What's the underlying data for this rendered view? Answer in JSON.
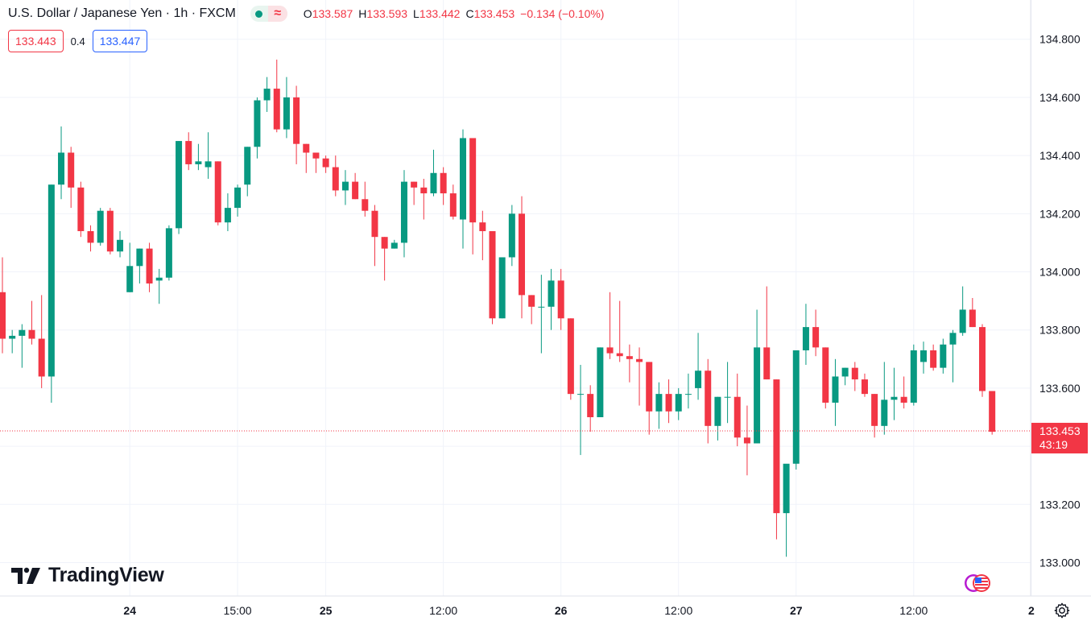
{
  "header": {
    "title": "U.S. Dollar / Japanese Yen · 1h · FXCM",
    "ohlc": [
      {
        "k": "O",
        "v": "133.587"
      },
      {
        "k": "H",
        "v": "133.593"
      },
      {
        "k": "L",
        "v": "133.442"
      },
      {
        "k": "C",
        "v": "133.453"
      },
      {
        "k": "",
        "v": "−0.134 (−0.10%)"
      }
    ]
  },
  "trade": {
    "sell": "133.443",
    "spread": "0.4",
    "buy": "133.447"
  },
  "brand": {
    "name": "TradingView"
  },
  "colors": {
    "up": "#089981",
    "down": "#f23645",
    "grid": "#f0f3fa",
    "axis_text": "#131722"
  },
  "icons": [
    "tradingview-logo-icon",
    "market-status-dot-icon",
    "wave-icon",
    "us-flag-icon",
    "gear-icon"
  ],
  "chart_data": {
    "type": "candlestick",
    "interval": "1h",
    "y_axis": {
      "ticks": [
        "133.000",
        "133.200",
        "133.400",
        "133.600",
        "133.800",
        "134.000",
        "134.200",
        "134.400",
        "134.600",
        "134.800"
      ],
      "ylim": [
        132.885,
        134.935
      ]
    },
    "x_axis": {
      "labels": [
        {
          "text": "24",
          "bold": true,
          "i": 13
        },
        {
          "text": "15:00",
          "bold": false,
          "i": 24
        },
        {
          "text": "25",
          "bold": true,
          "i": 33
        },
        {
          "text": "12:00",
          "bold": false,
          "i": 45
        },
        {
          "text": "26",
          "bold": true,
          "i": 57
        },
        {
          "text": "12:00",
          "bold": false,
          "i": 69
        },
        {
          "text": "27",
          "bold": true,
          "i": 81
        },
        {
          "text": "12:00",
          "bold": false,
          "i": 93
        },
        {
          "text": "2",
          "bold": true,
          "i": 105
        }
      ]
    },
    "last_price": {
      "value": 133.453,
      "label": "133.453",
      "countdown": "43:19"
    },
    "candles": [
      [
        133.93,
        134.05,
        133.72,
        133.77
      ],
      [
        133.77,
        133.8,
        133.72,
        133.78
      ],
      [
        133.78,
        133.82,
        133.67,
        133.8
      ],
      [
        133.8,
        133.9,
        133.75,
        133.77
      ],
      [
        133.77,
        133.92,
        133.6,
        133.64
      ],
      [
        133.64,
        134.3,
        133.55,
        134.3
      ],
      [
        134.3,
        134.5,
        134.25,
        134.41
      ],
      [
        134.41,
        134.43,
        134.22,
        134.29
      ],
      [
        134.29,
        134.31,
        134.12,
        134.14
      ],
      [
        134.14,
        134.16,
        134.07,
        134.1
      ],
      [
        134.1,
        134.22,
        134.09,
        134.21
      ],
      [
        134.21,
        134.22,
        134.06,
        134.07
      ],
      [
        134.07,
        134.14,
        134.05,
        134.11
      ],
      [
        133.93,
        134.1,
        133.93,
        134.02
      ],
      [
        134.02,
        134.08,
        133.96,
        134.08
      ],
      [
        134.08,
        134.1,
        133.93,
        133.96
      ],
      [
        133.97,
        134.01,
        133.89,
        133.98
      ],
      [
        133.98,
        134.16,
        133.97,
        134.15
      ],
      [
        134.15,
        134.45,
        134.13,
        134.45
      ],
      [
        134.45,
        134.48,
        134.35,
        134.37
      ],
      [
        134.37,
        134.44,
        134.35,
        134.38
      ],
      [
        134.36,
        134.48,
        134.32,
        134.38
      ],
      [
        134.38,
        134.38,
        134.16,
        134.17
      ],
      [
        134.17,
        134.27,
        134.14,
        134.22
      ],
      [
        134.22,
        134.3,
        134.19,
        134.29
      ],
      [
        134.3,
        134.43,
        134.26,
        134.43
      ],
      [
        134.43,
        134.6,
        134.39,
        134.59
      ],
      [
        134.59,
        134.67,
        134.55,
        134.63
      ],
      [
        134.63,
        134.73,
        134.48,
        134.49
      ],
      [
        134.49,
        134.67,
        134.46,
        134.6
      ],
      [
        134.6,
        134.64,
        134.37,
        134.44
      ],
      [
        134.44,
        134.44,
        134.34,
        134.41
      ],
      [
        134.41,
        134.41,
        134.34,
        134.39
      ],
      [
        134.39,
        134.4,
        134.34,
        134.36
      ],
      [
        134.36,
        134.4,
        134.26,
        134.28
      ],
      [
        134.28,
        134.35,
        134.23,
        134.31
      ],
      [
        134.31,
        134.34,
        134.25,
        134.25
      ],
      [
        134.25,
        134.31,
        134.19,
        134.21
      ],
      [
        134.21,
        134.23,
        134.02,
        134.12
      ],
      [
        134.12,
        134.12,
        133.97,
        134.08
      ],
      [
        134.08,
        134.11,
        134.08,
        134.1
      ],
      [
        134.1,
        134.35,
        134.05,
        134.31
      ],
      [
        134.31,
        134.31,
        134.23,
        134.29
      ],
      [
        134.29,
        134.32,
        134.18,
        134.27
      ],
      [
        134.27,
        134.42,
        134.26,
        134.34
      ],
      [
        134.34,
        134.36,
        134.23,
        134.27
      ],
      [
        134.27,
        134.3,
        134.18,
        134.19
      ],
      [
        134.18,
        134.49,
        134.08,
        134.46
      ],
      [
        134.46,
        134.46,
        134.06,
        134.17
      ],
      [
        134.17,
        134.21,
        134.04,
        134.14
      ],
      [
        134.14,
        134.14,
        133.82,
        133.84
      ],
      [
        133.84,
        134.05,
        133.84,
        134.05
      ],
      [
        134.05,
        134.23,
        134.02,
        134.2
      ],
      [
        134.2,
        134.26,
        133.84,
        133.92
      ],
      [
        133.92,
        133.92,
        133.82,
        133.88
      ],
      [
        133.88,
        133.99,
        133.72,
        133.88
      ],
      [
        133.88,
        134.01,
        133.8,
        133.97
      ],
      [
        133.97,
        134.01,
        133.8,
        133.84
      ],
      [
        133.84,
        133.84,
        133.56,
        133.58
      ],
      [
        133.58,
        133.68,
        133.37,
        133.58
      ],
      [
        133.58,
        133.61,
        133.45,
        133.5
      ],
      [
        133.5,
        133.74,
        133.5,
        133.74
      ],
      [
        133.74,
        133.93,
        133.7,
        133.72
      ],
      [
        133.72,
        133.9,
        133.69,
        133.71
      ],
      [
        133.71,
        133.75,
        133.62,
        133.7
      ],
      [
        133.7,
        133.74,
        133.54,
        133.69
      ],
      [
        133.69,
        133.69,
        133.44,
        133.52
      ],
      [
        133.52,
        133.62,
        133.46,
        133.58
      ],
      [
        133.58,
        133.63,
        133.48,
        133.52
      ],
      [
        133.52,
        133.6,
        133.49,
        133.58
      ],
      [
        133.58,
        133.65,
        133.53,
        133.58
      ],
      [
        133.6,
        133.79,
        133.56,
        133.66
      ],
      [
        133.66,
        133.7,
        133.41,
        133.47
      ],
      [
        133.47,
        133.57,
        133.42,
        133.57
      ],
      [
        133.57,
        133.69,
        133.48,
        133.57
      ],
      [
        133.57,
        133.65,
        133.4,
        133.43
      ],
      [
        133.43,
        133.54,
        133.3,
        133.41
      ],
      [
        133.41,
        133.87,
        133.41,
        133.74
      ],
      [
        133.74,
        133.95,
        133.63,
        133.63
      ],
      [
        133.63,
        133.63,
        133.08,
        133.17
      ],
      [
        133.17,
        133.33,
        133.02,
        133.34
      ],
      [
        133.34,
        133.73,
        133.32,
        133.73
      ],
      [
        133.73,
        133.89,
        133.68,
        133.81
      ],
      [
        133.81,
        133.87,
        133.71,
        133.74
      ],
      [
        133.74,
        133.74,
        133.53,
        133.55
      ],
      [
        133.55,
        133.7,
        133.47,
        133.64
      ],
      [
        133.64,
        133.67,
        133.61,
        133.67
      ],
      [
        133.67,
        133.69,
        133.59,
        133.63
      ],
      [
        133.63,
        133.65,
        133.57,
        133.58
      ],
      [
        133.58,
        133.58,
        133.43,
        133.47
      ],
      [
        133.47,
        133.69,
        133.44,
        133.56
      ],
      [
        133.56,
        133.67,
        133.49,
        133.57
      ],
      [
        133.57,
        133.64,
        133.53,
        133.55
      ],
      [
        133.55,
        133.75,
        133.54,
        133.73
      ],
      [
        133.69,
        133.76,
        133.65,
        133.73
      ],
      [
        133.73,
        133.75,
        133.66,
        133.67
      ],
      [
        133.67,
        133.77,
        133.65,
        133.75
      ],
      [
        133.75,
        133.8,
        133.62,
        133.79
      ],
      [
        133.79,
        133.95,
        133.78,
        133.87
      ],
      [
        133.87,
        133.91,
        133.81,
        133.81
      ],
      [
        133.81,
        133.82,
        133.57,
        133.59
      ],
      [
        133.59,
        133.59,
        133.44,
        133.45
      ]
    ]
  }
}
